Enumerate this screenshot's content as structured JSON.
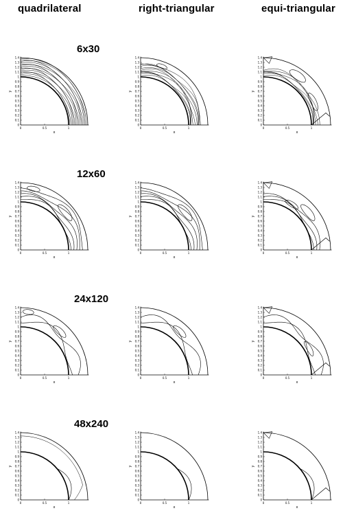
{
  "columns": [
    {
      "key": "quad",
      "label": "quadrilateral"
    },
    {
      "key": "right",
      "label": "right-triangular"
    },
    {
      "key": "equi",
      "label": "equi-triangular"
    }
  ],
  "resolutions": [
    "6x30",
    "12x60",
    "24x120",
    "48x240"
  ],
  "axes": {
    "xlabel": "x",
    "ylabel": "y",
    "x_ticks": [
      "0",
      "0.5",
      "1"
    ],
    "y_ticks": [
      "0",
      "0.1",
      "0.2",
      "0.3",
      "0.4",
      "0.5",
      "0.6",
      "0.7",
      "0.8",
      "0.9",
      "1",
      "1.1",
      "1.2",
      "1.3",
      "1.4"
    ],
    "xlim": [
      0,
      1.4
    ],
    "ylim": [
      0,
      1.4
    ]
  },
  "geometry": {
    "inner_radius": 1.0,
    "outer_radius": 1.4
  }
}
